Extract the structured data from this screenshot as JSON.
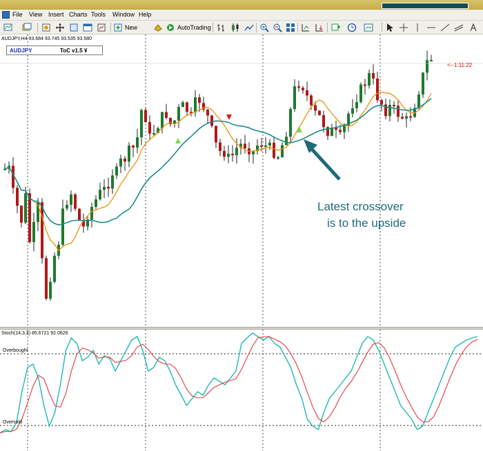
{
  "menu": [
    "File",
    "View",
    "Insert",
    "Charts",
    "Tools",
    "Window",
    "Help"
  ],
  "toolbar": {
    "new_order": "New Order",
    "autotrading": "AutoTrading"
  },
  "chart": {
    "symbol_header": "AUDJPY,H4  93.684 93.745 93.535 93.580",
    "symbol": "AUDJPY",
    "indicator": "ToC v1.5 ¥",
    "timer": "<--1:11:22",
    "annotation_line1": "Latest crossover",
    "annotation_line2": "is to the upside",
    "colors": {
      "bull": "#1e7a2e",
      "bear": "#b01818",
      "ma_fast": "#f0900a",
      "ma_slow": "#1b8a8a",
      "arrow": "#1f6c78"
    }
  },
  "stochastic": {
    "header": "Stoch(14,3,3) 85.6721 92.0626",
    "overbought": "Overbought",
    "oversold": "Oversold",
    "colors": {
      "main": "#20b8b0",
      "signal": "#e23a3a"
    }
  }
}
